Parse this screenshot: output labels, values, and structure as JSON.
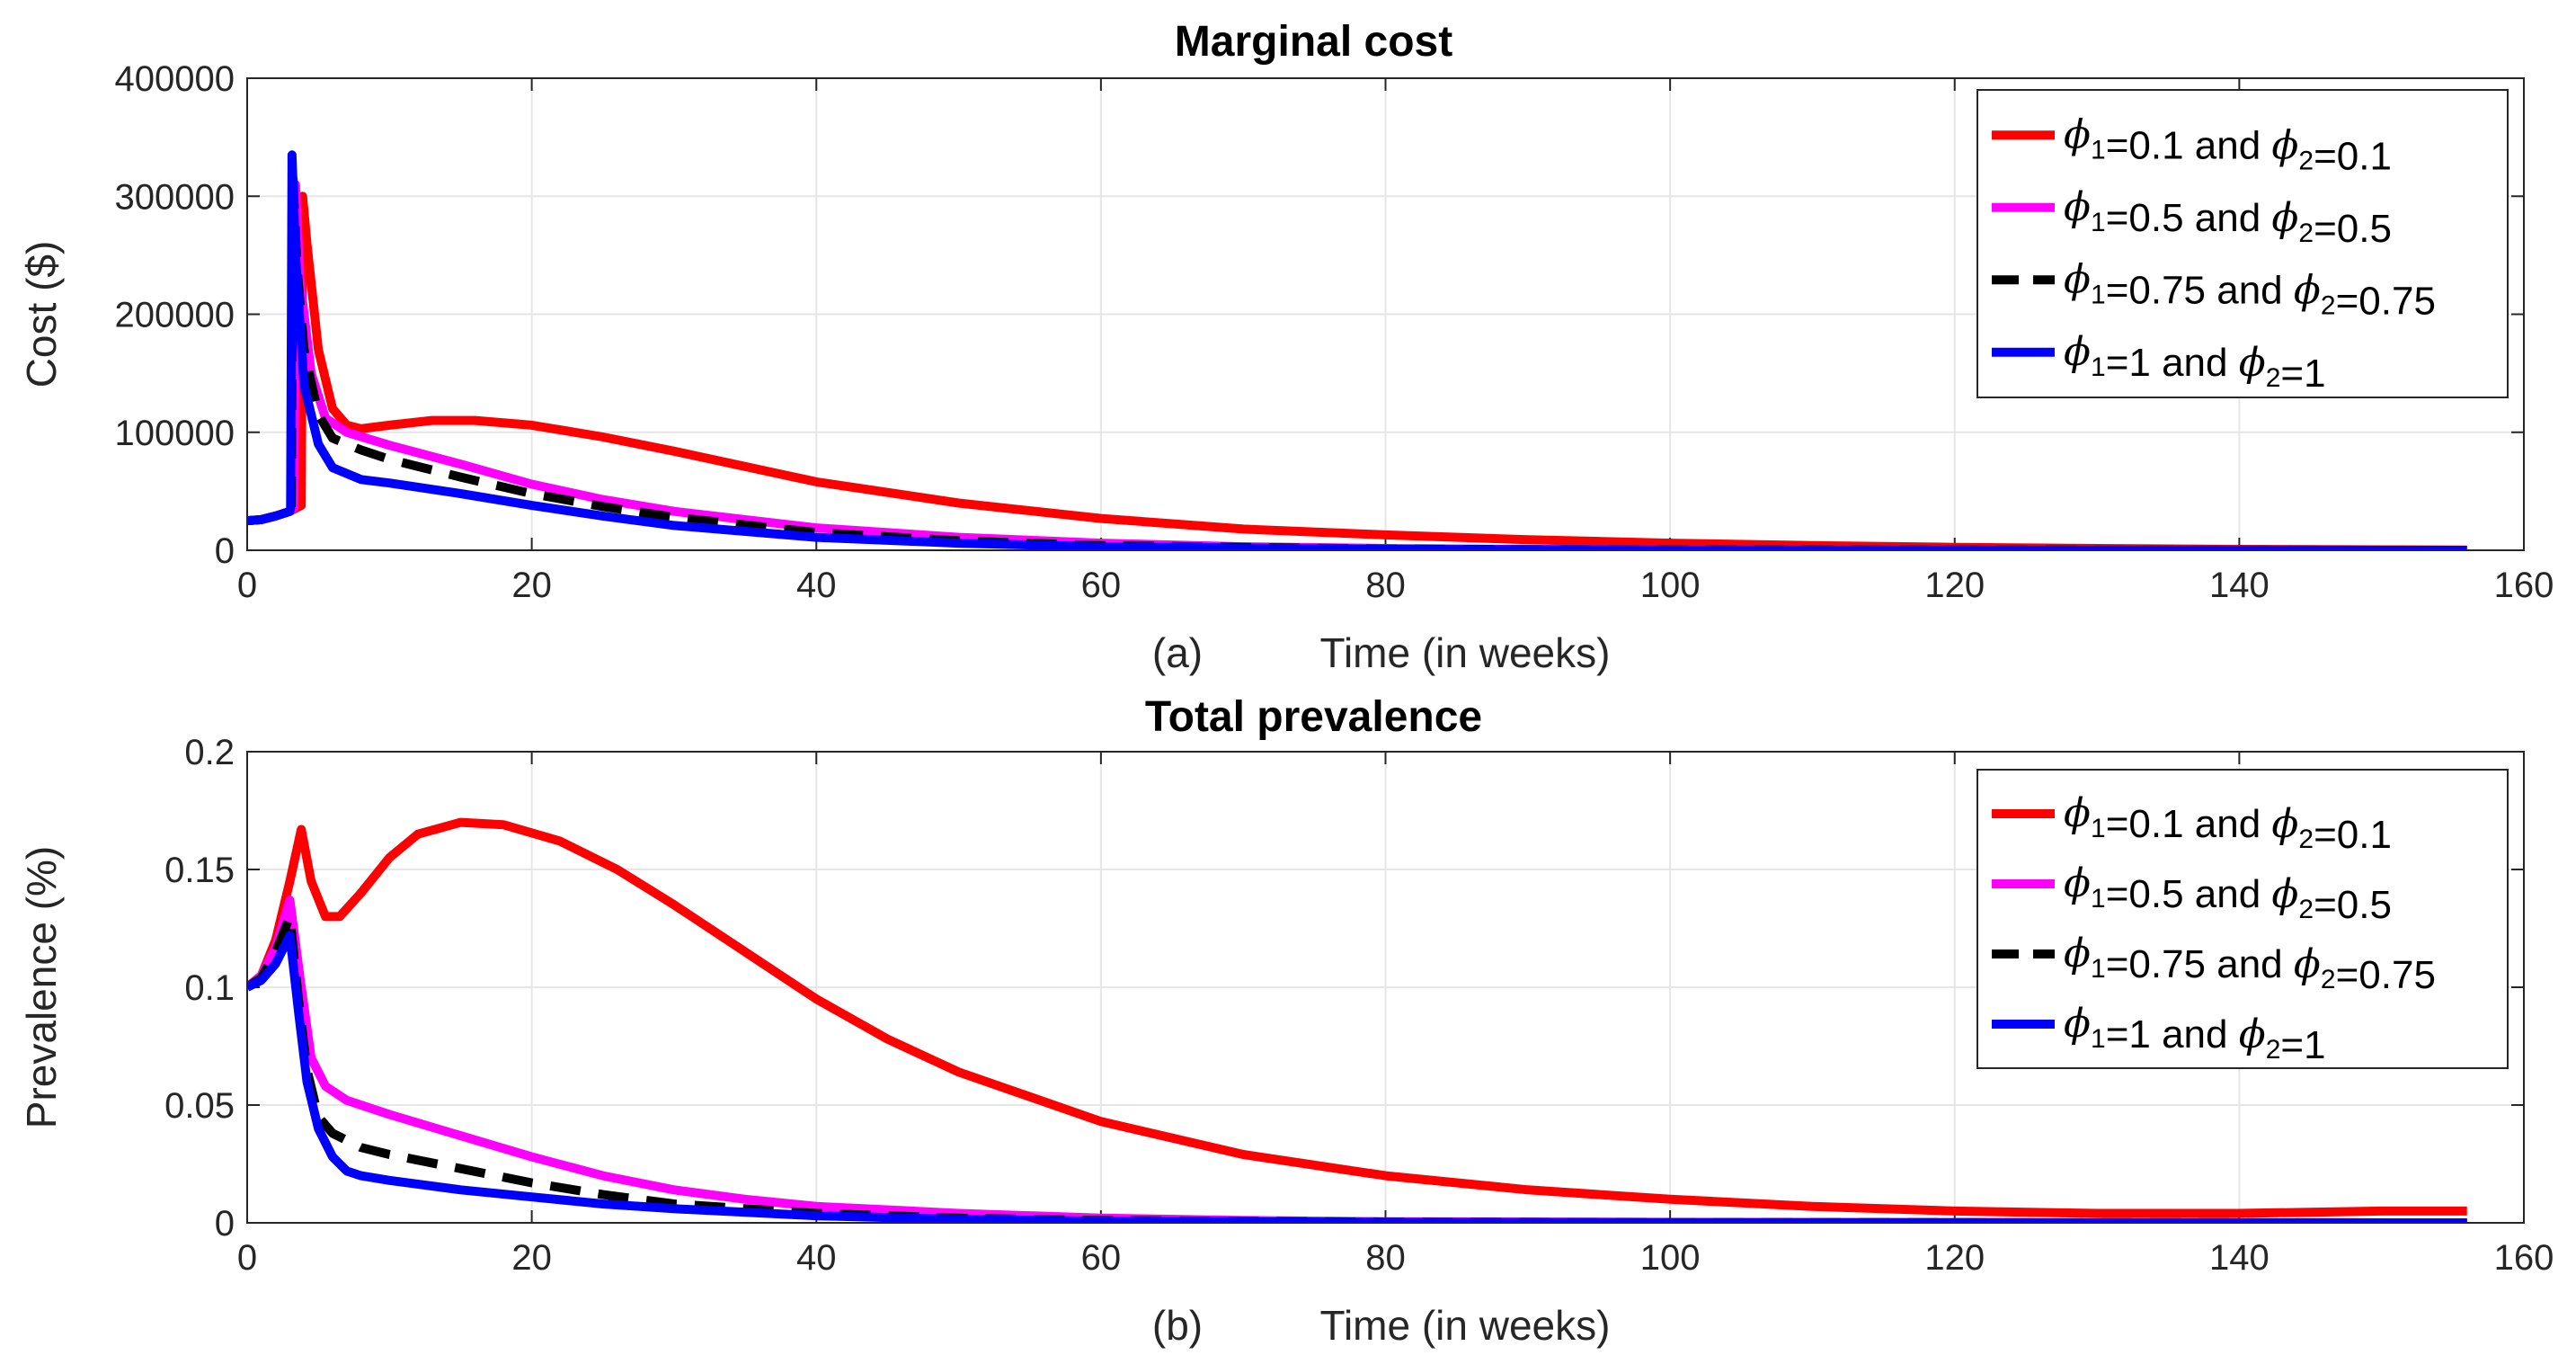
{
  "chart_data": [
    {
      "type": "line",
      "title": "Marginal cost",
      "panel_label": "(a)",
      "xlabel": "Time (in weeks)",
      "ylabel": "Cost ($)",
      "xlim": [
        0,
        160
      ],
      "ylim": [
        0,
        400000
      ],
      "xticks": [
        "0",
        "20",
        "40",
        "60",
        "80",
        "100",
        "120",
        "140",
        "160"
      ],
      "yticks": [
        "0",
        "100000",
        "200000",
        "300000",
        "400000"
      ],
      "grid": true,
      "legend": "top-right",
      "series": [
        {
          "name": "phi1=0.1 and phi2=0.1",
          "phi1": "0.1",
          "phi2": "0.1",
          "color": "#ff0000",
          "dash": "solid",
          "x": [
            0,
            1,
            2,
            3,
            3.8,
            3.9,
            4.2,
            5,
            6,
            7,
            8,
            10,
            13,
            16,
            20,
            25,
            30,
            40,
            50,
            60,
            70,
            80,
            90,
            100,
            110,
            120,
            130,
            140,
            150,
            156
          ],
          "y": [
            25000,
            26000,
            29000,
            33000,
            38000,
            300000,
            260000,
            170000,
            120000,
            106000,
            103000,
            106000,
            110000,
            110000,
            106000,
            96000,
            84000,
            58000,
            40000,
            27000,
            18000,
            13000,
            9000,
            6000,
            4000,
            2500,
            1500,
            800,
            400,
            200
          ]
        },
        {
          "name": "phi1=0.5 and phi2=0.5",
          "phi1": "0.5",
          "phi2": "0.5",
          "color": "#ff00ff",
          "dash": "solid",
          "x": [
            0,
            1,
            2,
            3,
            3.3,
            3.4,
            3.7,
            4.5,
            5.5,
            7,
            10,
            15,
            20,
            25,
            30,
            40,
            50,
            60,
            70,
            80,
            90,
            100,
            120,
            140,
            156
          ],
          "y": [
            25000,
            26000,
            29000,
            33000,
            36000,
            310000,
            230000,
            150000,
            112000,
            100000,
            89000,
            73000,
            56000,
            43000,
            33000,
            19000,
            11000,
            6000,
            3000,
            1500,
            800,
            400,
            100,
            50,
            0
          ]
        },
        {
          "name": "phi1=0.75 and phi2=0.75",
          "phi1": "0.75",
          "phi2": "0.75",
          "color": "#000000",
          "dash": "dashed",
          "x": [
            0,
            1,
            2,
            3,
            3.1,
            3.2,
            3.5,
            4,
            5,
            6,
            8,
            10,
            15,
            20,
            25,
            30,
            40,
            50,
            60,
            80,
            100,
            156
          ],
          "y": [
            25000,
            26000,
            29000,
            33000,
            35000,
            320000,
            240000,
            170000,
            115000,
            95000,
            85000,
            77000,
            62000,
            48000,
            37000,
            28000,
            15000,
            8000,
            4000,
            1000,
            300,
            0
          ]
        },
        {
          "name": "phi1=1 and phi2=1",
          "phi1": "1",
          "phi2": "1",
          "color": "#0000ff",
          "dash": "solid",
          "x": [
            0,
            1,
            2,
            3,
            3.05,
            3.15,
            3.4,
            4,
            5,
            6,
            8,
            10,
            15,
            20,
            25,
            30,
            40,
            50,
            60,
            80,
            100,
            156
          ],
          "y": [
            25000,
            26000,
            29000,
            33000,
            36000,
            335000,
            250000,
            140000,
            90000,
            70000,
            60000,
            57000,
            48000,
            38000,
            29000,
            21000,
            11000,
            6000,
            3000,
            800,
            200,
            0
          ]
        }
      ]
    },
    {
      "type": "line",
      "title": "Total prevalence",
      "panel_label": "(b)",
      "xlabel": "Time (in weeks)",
      "ylabel": "Prevalence (%)",
      "xlim": [
        0,
        160
      ],
      "ylim": [
        0,
        0.2
      ],
      "xticks": [
        "0",
        "20",
        "40",
        "60",
        "80",
        "100",
        "120",
        "140",
        "160"
      ],
      "yticks": [
        "0",
        "0.05",
        "0.1",
        "0.15",
        "0.2"
      ],
      "grid": true,
      "legend": "top-right",
      "series": [
        {
          "name": "phi1=0.1 and phi2=0.1",
          "phi1": "0.1",
          "phi2": "0.1",
          "color": "#ff0000",
          "dash": "solid",
          "x": [
            0,
            1,
            2,
            3,
            3.8,
            4.5,
            5.5,
            6.5,
            8,
            10,
            12,
            15,
            18,
            22,
            26,
            30,
            35,
            40,
            45,
            50,
            60,
            70,
            80,
            90,
            100,
            110,
            120,
            130,
            140,
            150,
            156
          ],
          "y": [
            0.1,
            0.105,
            0.12,
            0.145,
            0.167,
            0.145,
            0.13,
            0.13,
            0.14,
            0.155,
            0.165,
            0.17,
            0.169,
            0.162,
            0.15,
            0.135,
            0.115,
            0.095,
            0.078,
            0.064,
            0.043,
            0.029,
            0.02,
            0.014,
            0.01,
            0.007,
            0.005,
            0.004,
            0.004,
            0.005,
            0.005
          ]
        },
        {
          "name": "phi1=0.5 and phi2=0.5",
          "phi1": "0.5",
          "phi2": "0.5",
          "color": "#ff00ff",
          "dash": "solid",
          "x": [
            0,
            1,
            2,
            3,
            3.8,
            4.5,
            5.5,
            7,
            10,
            15,
            20,
            25,
            30,
            35,
            40,
            50,
            60,
            70,
            80,
            100,
            120,
            156
          ],
          "y": [
            0.1,
            0.105,
            0.117,
            0.137,
            0.1,
            0.07,
            0.058,
            0.052,
            0.046,
            0.037,
            0.028,
            0.02,
            0.014,
            0.01,
            0.007,
            0.004,
            0.002,
            0.001,
            0.0005,
            0.0002,
            0.0001,
            0
          ]
        },
        {
          "name": "phi1=0.75 and phi2=0.75",
          "phi1": "0.75",
          "phi2": "0.75",
          "color": "#000000",
          "dash": "dashed",
          "x": [
            0,
            1,
            2,
            3,
            3.6,
            4.2,
            5,
            6,
            8,
            10,
            15,
            20,
            25,
            30,
            40,
            50,
            60,
            80,
            100,
            156
          ],
          "y": [
            0.1,
            0.104,
            0.115,
            0.13,
            0.095,
            0.065,
            0.045,
            0.038,
            0.032,
            0.029,
            0.023,
            0.017,
            0.012,
            0.008,
            0.004,
            0.002,
            0.001,
            0.0003,
            0.0001,
            0
          ]
        },
        {
          "name": "phi1=1 and phi2=1",
          "phi1": "1",
          "phi2": "1",
          "color": "#0000ff",
          "dash": "solid",
          "x": [
            0,
            1,
            2,
            3,
            3.6,
            4.2,
            5,
            6,
            7,
            8,
            10,
            15,
            20,
            25,
            30,
            40,
            50,
            60,
            80,
            100,
            156
          ],
          "y": [
            0.1,
            0.103,
            0.11,
            0.122,
            0.09,
            0.06,
            0.04,
            0.028,
            0.022,
            0.02,
            0.018,
            0.014,
            0.011,
            0.008,
            0.006,
            0.003,
            0.0015,
            0.0007,
            0.0002,
            0.0001,
            0
          ]
        }
      ]
    }
  ]
}
